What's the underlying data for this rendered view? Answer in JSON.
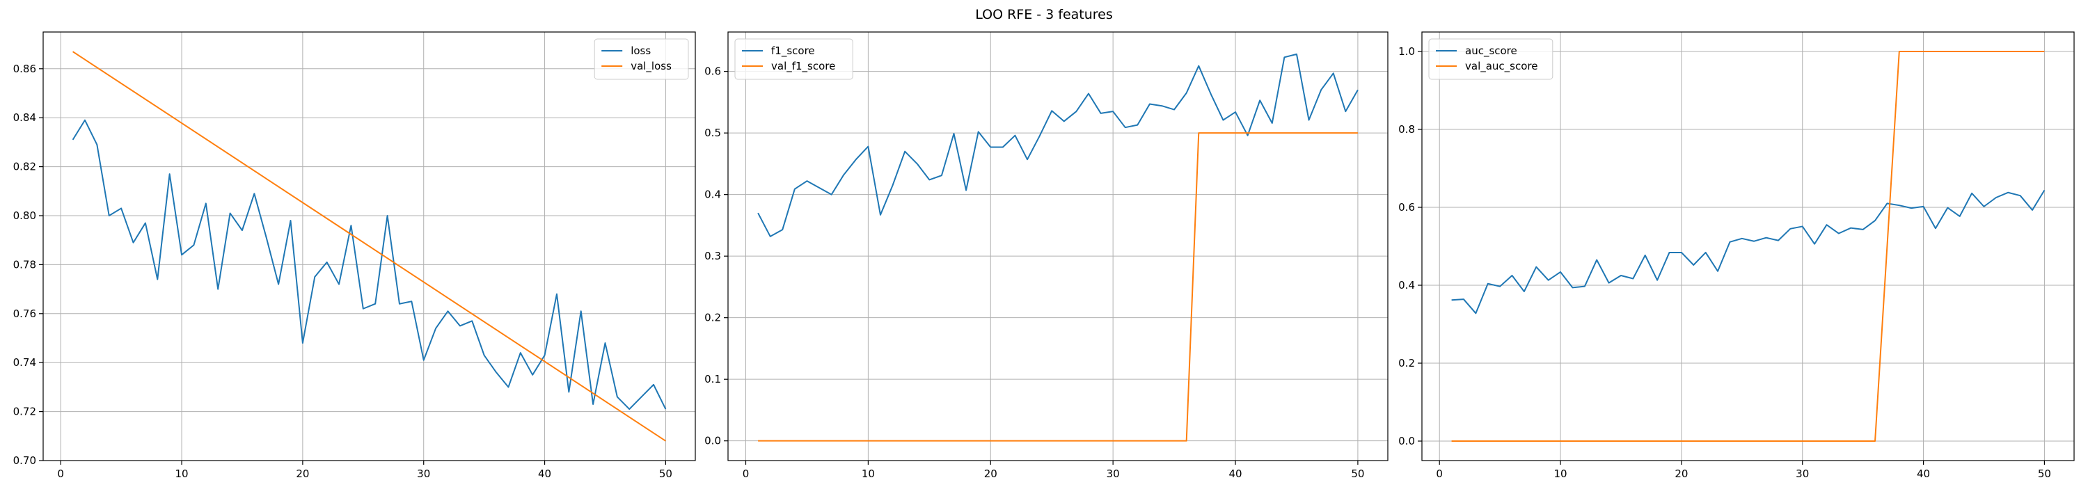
{
  "figure": {
    "title": "LOO RFE - 3 features"
  },
  "chart_data": [
    {
      "type": "line",
      "xlim": [
        -1.45,
        52.45
      ],
      "ylim": [
        0.7,
        0.875
      ],
      "xticks": [
        0,
        10,
        20,
        30,
        40,
        50
      ],
      "yticks": [
        0.7,
        0.72,
        0.74,
        0.76,
        0.78,
        0.8,
        0.82,
        0.84,
        0.86
      ],
      "tick_decimals": 2,
      "grid": true,
      "legend": "upper right",
      "series": [
        {
          "name": "loss",
          "color": "#1f77b4",
          "x": [
            1,
            2,
            3,
            4,
            5,
            6,
            7,
            8,
            9,
            10,
            11,
            12,
            13,
            14,
            15,
            16,
            17,
            18,
            19,
            20,
            21,
            22,
            23,
            24,
            25,
            26,
            27,
            28,
            29,
            30,
            31,
            32,
            33,
            34,
            35,
            36,
            37,
            38,
            39,
            40,
            41,
            42,
            43,
            44,
            45,
            46,
            47,
            48,
            49,
            50
          ],
          "values": [
            0.831,
            0.839,
            0.829,
            0.8,
            0.803,
            0.789,
            0.797,
            0.774,
            0.817,
            0.784,
            0.788,
            0.805,
            0.77,
            0.801,
            0.794,
            0.809,
            0.791,
            0.772,
            0.798,
            0.748,
            0.775,
            0.781,
            0.772,
            0.796,
            0.762,
            0.764,
            0.8,
            0.764,
            0.765,
            0.741,
            0.754,
            0.761,
            0.755,
            0.757,
            0.743,
            0.736,
            0.73,
            0.744,
            0.735,
            0.743,
            0.768,
            0.728,
            0.761,
            0.723,
            0.748,
            0.726,
            0.721,
            0.726,
            0.731,
            0.721
          ]
        },
        {
          "name": "val_loss",
          "color": "#ff7f0e",
          "x": [
            1,
            50
          ],
          "values": [
            0.867,
            0.708
          ]
        }
      ]
    },
    {
      "type": "line",
      "xlim": [
        -1.45,
        52.45
      ],
      "ylim": [
        -0.032,
        0.664
      ],
      "xticks": [
        0,
        10,
        20,
        30,
        40,
        50
      ],
      "yticks": [
        0.0,
        0.1,
        0.2,
        0.3,
        0.4,
        0.5,
        0.6
      ],
      "tick_decimals": 1,
      "grid": true,
      "legend": "upper left",
      "series": [
        {
          "name": "f1_score",
          "color": "#1f77b4",
          "x": [
            1,
            2,
            3,
            4,
            5,
            6,
            7,
            8,
            9,
            10,
            11,
            12,
            13,
            14,
            15,
            16,
            17,
            18,
            19,
            20,
            21,
            22,
            23,
            24,
            25,
            26,
            27,
            28,
            29,
            30,
            31,
            32,
            33,
            34,
            35,
            36,
            37,
            38,
            39,
            40,
            41,
            42,
            43,
            44,
            45,
            46,
            47,
            48,
            49,
            50
          ],
          "values": [
            0.37,
            0.332,
            0.343,
            0.409,
            0.422,
            0.411,
            0.4,
            0.432,
            0.457,
            0.478,
            0.367,
            0.415,
            0.47,
            0.45,
            0.424,
            0.431,
            0.499,
            0.407,
            0.502,
            0.477,
            0.477,
            0.496,
            0.457,
            0.495,
            0.536,
            0.519,
            0.535,
            0.564,
            0.532,
            0.535,
            0.509,
            0.513,
            0.547,
            0.544,
            0.538,
            0.565,
            0.609,
            0.563,
            0.521,
            0.534,
            0.496,
            0.553,
            0.516,
            0.623,
            0.628,
            0.521,
            0.57,
            0.597,
            0.535,
            0.57
          ]
        },
        {
          "name": "val_f1_score",
          "color": "#ff7f0e",
          "x": [
            1,
            36,
            37,
            50
          ],
          "values": [
            0.0,
            0.0,
            0.5,
            0.5
          ]
        }
      ]
    },
    {
      "type": "line",
      "xlim": [
        -1.45,
        52.45
      ],
      "ylim": [
        -0.05,
        1.05
      ],
      "xticks": [
        0,
        10,
        20,
        30,
        40,
        50
      ],
      "yticks": [
        0.0,
        0.2,
        0.4,
        0.6,
        0.8,
        1.0
      ],
      "tick_decimals": 1,
      "grid": true,
      "legend": "upper left",
      "series": [
        {
          "name": "auc_score",
          "color": "#1f77b4",
          "x": [
            1,
            2,
            3,
            4,
            5,
            6,
            7,
            8,
            9,
            10,
            11,
            12,
            13,
            14,
            15,
            16,
            17,
            18,
            19,
            20,
            21,
            22,
            23,
            24,
            25,
            26,
            27,
            28,
            29,
            30,
            31,
            32,
            33,
            34,
            35,
            36,
            37,
            38,
            39,
            40,
            41,
            42,
            43,
            44,
            45,
            46,
            47,
            48,
            49,
            50
          ],
          "values": [
            0.362,
            0.364,
            0.328,
            0.404,
            0.397,
            0.425,
            0.384,
            0.447,
            0.413,
            0.434,
            0.394,
            0.397,
            0.465,
            0.406,
            0.425,
            0.417,
            0.477,
            0.413,
            0.484,
            0.484,
            0.452,
            0.484,
            0.436,
            0.511,
            0.52,
            0.513,
            0.522,
            0.515,
            0.545,
            0.551,
            0.506,
            0.555,
            0.533,
            0.547,
            0.543,
            0.566,
            0.61,
            0.605,
            0.598,
            0.602,
            0.546,
            0.599,
            0.577,
            0.636,
            0.602,
            0.625,
            0.638,
            0.63,
            0.593,
            0.644
          ]
        },
        {
          "name": "val_auc_score",
          "color": "#ff7f0e",
          "x": [
            1,
            36,
            38,
            50
          ],
          "values": [
            0.0,
            0.0,
            1.0,
            1.0
          ]
        }
      ]
    }
  ]
}
